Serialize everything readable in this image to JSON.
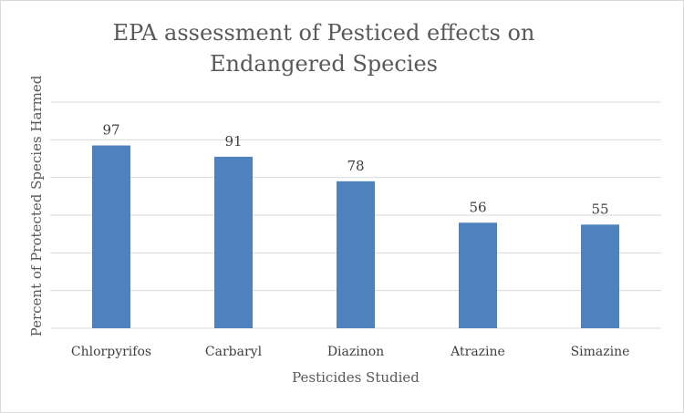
{
  "chart_data": {
    "type": "bar",
    "title_lines": [
      "EPA assessment  of Pesticed  effects on",
      "Endangered Species"
    ],
    "xlabel": "Pesticides Studied",
    "ylabel": "Percent of Protected Species Harmed",
    "categories": [
      "Chlorpyrifos",
      "Carbaryl",
      "Diazinon",
      "Atrazine",
      "Simazine"
    ],
    "values": [
      97,
      91,
      78,
      56,
      55
    ],
    "ylim": [
      0,
      120
    ],
    "gridlines": true,
    "y_tick_labels_shown": false,
    "data_labels": true,
    "bar_color": "#4f81bd",
    "gridline_color": "#d9d9d9"
  }
}
